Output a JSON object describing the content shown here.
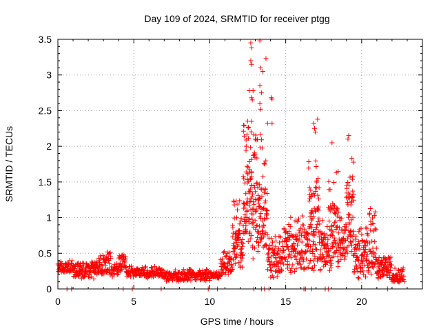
{
  "chart_data": {
    "type": "scatter",
    "title": "Day 109 of 2024, SRMTID for receiver ptgg",
    "xlabel": "GPS time / hours",
    "ylabel": "SRMTID / TECUs",
    "xlim": [
      0,
      24
    ],
    "ylim": [
      0,
      3.5
    ],
    "xticks": [
      "0",
      "5",
      "10",
      "15",
      "20"
    ],
    "yticks": [
      "0",
      "0.5",
      "1",
      "1.5",
      "2",
      "2.5",
      "3",
      "3.5"
    ],
    "grid": true,
    "marker": "+",
    "color": "#ff0000",
    "series": [
      {
        "name": "SRMTID",
        "segments": [
          {
            "x0": 0.0,
            "x1": 1.0,
            "lo": 0.22,
            "hi": 0.4,
            "base": 0.3,
            "n": 60
          },
          {
            "x0": 1.0,
            "x1": 2.5,
            "lo": 0.14,
            "hi": 0.4,
            "base": 0.27,
            "n": 95
          },
          {
            "x0": 2.5,
            "x1": 3.5,
            "lo": 0.18,
            "hi": 0.52,
            "base": 0.32,
            "n": 70
          },
          {
            "x0": 3.5,
            "x1": 4.0,
            "lo": 0.16,
            "hi": 0.36,
            "base": 0.25,
            "n": 30
          },
          {
            "x0": 4.0,
            "x1": 4.5,
            "lo": 0.25,
            "hi": 0.48,
            "base": 0.38,
            "n": 35
          },
          {
            "x0": 4.5,
            "x1": 7.0,
            "lo": 0.15,
            "hi": 0.32,
            "base": 0.22,
            "n": 140
          },
          {
            "x0": 7.0,
            "x1": 10.0,
            "lo": 0.1,
            "hi": 0.28,
            "base": 0.18,
            "n": 180
          },
          {
            "x0": 10.0,
            "x1": 10.7,
            "lo": 0.15,
            "hi": 0.25,
            "base": 0.2,
            "n": 35
          },
          {
            "x0": 10.7,
            "x1": 11.5,
            "lo": 0.15,
            "hi": 0.55,
            "base": 0.32,
            "n": 55
          },
          {
            "x0": 11.5,
            "x1": 12.2,
            "lo": 0.3,
            "hi": 1.3,
            "base": 0.7,
            "n": 70
          },
          {
            "x0": 12.2,
            "x1": 12.8,
            "lo": 0.6,
            "hi": 2.4,
            "base": 1.2,
            "n": 85
          },
          {
            "x0": 12.8,
            "x1": 13.8,
            "lo": 0.4,
            "hi": 2.2,
            "base": 1.0,
            "n": 110
          },
          {
            "x0": 13.8,
            "x1": 14.8,
            "lo": 0.15,
            "hi": 0.75,
            "base": 0.38,
            "n": 75
          },
          {
            "x0": 14.8,
            "x1": 16.5,
            "lo": 0.2,
            "hi": 1.05,
            "base": 0.55,
            "n": 130
          },
          {
            "x0": 16.5,
            "x1": 17.2,
            "lo": 0.25,
            "hi": 1.9,
            "base": 0.9,
            "n": 80
          },
          {
            "x0": 17.2,
            "x1": 17.8,
            "lo": 0.25,
            "hi": 1.0,
            "base": 0.55,
            "n": 55
          },
          {
            "x0": 17.8,
            "x1": 18.5,
            "lo": 0.25,
            "hi": 1.8,
            "base": 0.8,
            "n": 75
          },
          {
            "x0": 18.5,
            "x1": 19.0,
            "lo": 0.3,
            "hi": 1.0,
            "base": 0.6,
            "n": 40
          },
          {
            "x0": 19.0,
            "x1": 19.5,
            "lo": 0.4,
            "hi": 1.9,
            "base": 1.0,
            "n": 55
          },
          {
            "x0": 19.5,
            "x1": 20.5,
            "lo": 0.15,
            "hi": 0.9,
            "base": 0.5,
            "n": 85
          },
          {
            "x0": 20.5,
            "x1": 21.0,
            "lo": 0.2,
            "hi": 1.2,
            "base": 0.6,
            "n": 40
          },
          {
            "x0": 21.0,
            "x1": 22.0,
            "lo": 0.12,
            "hi": 0.45,
            "base": 0.3,
            "n": 75
          },
          {
            "x0": 22.0,
            "x1": 22.8,
            "lo": 0.08,
            "hi": 0.32,
            "base": 0.15,
            "n": 50
          }
        ],
        "outliers": [
          {
            "x": 12.7,
            "y": 3.45
          },
          {
            "x": 12.75,
            "y": 3.38
          },
          {
            "x": 12.7,
            "y": 3.2
          },
          {
            "x": 12.75,
            "y": 3.15
          },
          {
            "x": 13.3,
            "y": 3.48
          },
          {
            "x": 13.7,
            "y": 3.23
          },
          {
            "x": 13.5,
            "y": 3.05
          },
          {
            "x": 13.35,
            "y": 3.1
          },
          {
            "x": 13.3,
            "y": 2.85
          },
          {
            "x": 13.4,
            "y": 2.75
          },
          {
            "x": 12.6,
            "y": 2.78
          },
          {
            "x": 12.85,
            "y": 2.78
          },
          {
            "x": 12.75,
            "y": 2.68
          },
          {
            "x": 12.8,
            "y": 2.65
          },
          {
            "x": 13.3,
            "y": 2.6
          },
          {
            "x": 13.35,
            "y": 2.52
          },
          {
            "x": 14.05,
            "y": 2.68
          },
          {
            "x": 14.1,
            "y": 2.66
          },
          {
            "x": 12.75,
            "y": 2.35
          },
          {
            "x": 13.8,
            "y": 2.32
          },
          {
            "x": 14.1,
            "y": 2.32
          },
          {
            "x": 16.85,
            "y": 2.32
          },
          {
            "x": 16.9,
            "y": 2.25
          },
          {
            "x": 17.1,
            "y": 2.38
          },
          {
            "x": 16.95,
            "y": 2.2
          },
          {
            "x": 18.05,
            "y": 2.05
          },
          {
            "x": 19.15,
            "y": 2.15
          },
          {
            "x": 19.1,
            "y": 2.1
          },
          {
            "x": 13.0,
            "y": 2.1
          },
          {
            "x": 12.4,
            "y": 2.0
          }
        ],
        "baseline_markers": [
          0.6,
          0.9,
          4.3,
          4.9,
          6.8,
          9.9,
          10.5,
          12.9,
          13.4,
          13.6,
          13.9,
          16.2,
          16.3,
          16.7,
          17.6,
          17.8,
          21.7
        ]
      }
    ]
  }
}
